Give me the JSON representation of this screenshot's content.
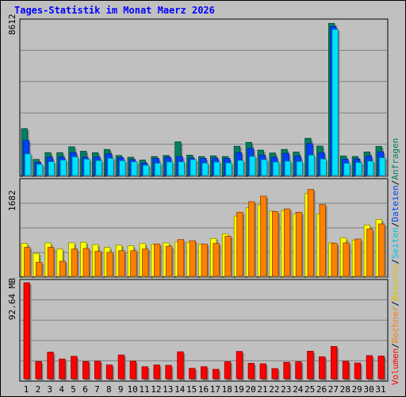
{
  "chart_data": {
    "type": "bar",
    "title": "Tages-Statistik im Monat Maerz 2026",
    "days": [
      "1",
      "2",
      "3",
      "4",
      "5",
      "6",
      "7",
      "8",
      "9",
      "10",
      "11",
      "12",
      "13",
      "14",
      "15",
      "16",
      "17",
      "18",
      "19",
      "20",
      "21",
      "22",
      "23",
      "24",
      "25",
      "26",
      "27",
      "28",
      "29",
      "30",
      "31"
    ],
    "weekend_days": [
      1,
      7,
      8,
      14,
      15,
      21,
      22,
      28,
      29
    ],
    "colors": {
      "weekday_label": "#000000",
      "weekend_label": "#008040",
      "anfragen": "#008060",
      "dateien": "#0040ff",
      "seiten": "#00e0ff",
      "besuche": "#ffff00",
      "rechner": "#ff8000",
      "volumen": "#ff0000",
      "background": "#c0c0c0",
      "title": "#0000ff"
    },
    "panel1": {
      "max_label": "8612",
      "ymax": 8612,
      "series": [
        {
          "name": "Anfragen",
          "values": [
            2650,
            910,
            1290,
            1290,
            1620,
            1370,
            1290,
            1470,
            1130,
            1030,
            870,
            1070,
            1130,
            1900,
            1150,
            1070,
            1110,
            1070,
            1650,
            1870,
            1430,
            1270,
            1470,
            1320,
            2100,
            1660,
            8590,
            1100,
            1070,
            1330,
            1640
          ]
        },
        {
          "name": "Dateien",
          "values": [
            1980,
            740,
            1030,
            1040,
            1290,
            1030,
            1050,
            1230,
            1010,
            900,
            700,
            960,
            1030,
            1070,
            980,
            970,
            980,
            960,
            1290,
            1530,
            1150,
            1030,
            1250,
            1090,
            1800,
            1290,
            8420,
            920,
            930,
            1090,
            1340
          ]
        },
        {
          "name": "Seiten",
          "values": [
            1220,
            630,
            780,
            870,
            1050,
            920,
            840,
            970,
            830,
            770,
            580,
            690,
            770,
            770,
            900,
            700,
            760,
            710,
            850,
            1080,
            890,
            760,
            810,
            790,
            1150,
            930,
            8250,
            690,
            730,
            810,
            1000
          ]
        }
      ]
    },
    "panel2": {
      "max_label": "1682",
      "ymax": 1682,
      "series": [
        {
          "name": "Besuche",
          "values": [
            590,
            410,
            600,
            490,
            600,
            610,
            570,
            520,
            560,
            550,
            590,
            580,
            600,
            620,
            610,
            580,
            680,
            760,
            1080,
            1230,
            1280,
            1170,
            1180,
            1120,
            1490,
            1120,
            600,
            690,
            650,
            920,
            1020
          ]
        },
        {
          "name": "Rechner",
          "values": [
            520,
            250,
            520,
            270,
            490,
            500,
            450,
            430,
            460,
            460,
            490,
            580,
            540,
            660,
            640,
            580,
            590,
            720,
            1150,
            1340,
            1440,
            1160,
            1210,
            1150,
            1560,
            1290,
            590,
            600,
            670,
            850,
            940
          ]
        }
      ]
    },
    "panel3": {
      "max_label": "92.64 MB",
      "ymax": 92.64,
      "series": [
        {
          "name": "Volumen",
          "values": [
            92.6,
            16.6,
            25.7,
            19.0,
            21.6,
            16.6,
            16.9,
            13.3,
            22.9,
            16.9,
            11.6,
            13.3,
            12.9,
            26.0,
            10.0,
            11.6,
            9.1,
            16.4,
            26.3,
            14.9,
            14.4,
            9.8,
            15.9,
            16.4,
            26.5,
            21.2,
            31.1,
            16.9,
            15.2,
            22.3,
            21.9
          ]
        }
      ]
    },
    "legend": {
      "anfragen": "Anfragen",
      "dateien": "Dateien",
      "seiten": "Seiten",
      "besuche": "Besuche",
      "rechner": "Rechner",
      "volumen": "Volumen",
      "sep": "/"
    }
  }
}
